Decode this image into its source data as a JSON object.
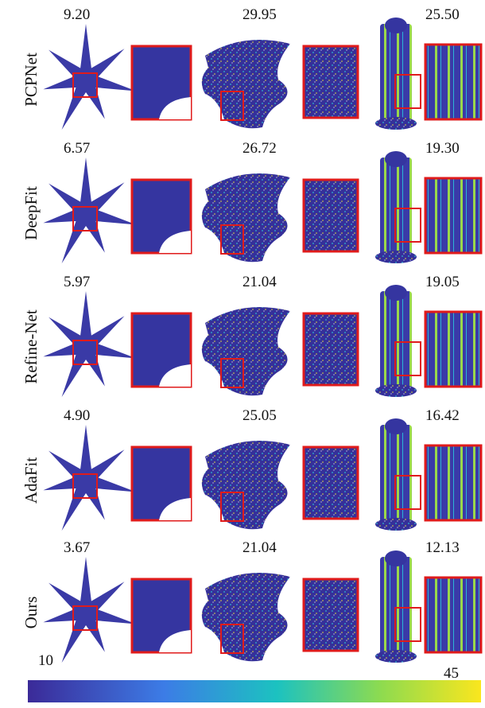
{
  "rows": [
    {
      "method": "PCPNet",
      "values": [
        "9.20",
        "29.95",
        "25.50"
      ]
    },
    {
      "method": "DeepFit",
      "values": [
        "6.57",
        "26.72",
        "19.30"
      ]
    },
    {
      "method": "Refine-Net",
      "values": [
        "5.97",
        "21.04",
        "19.05"
      ]
    },
    {
      "method": "AdaFit",
      "values": [
        "4.90",
        "25.05",
        "16.42"
      ]
    },
    {
      "method": "Ours",
      "values": [
        "3.67",
        "21.04",
        "12.13"
      ]
    }
  ],
  "colorbar": {
    "min_label": "10",
    "max_label": "45"
  }
}
